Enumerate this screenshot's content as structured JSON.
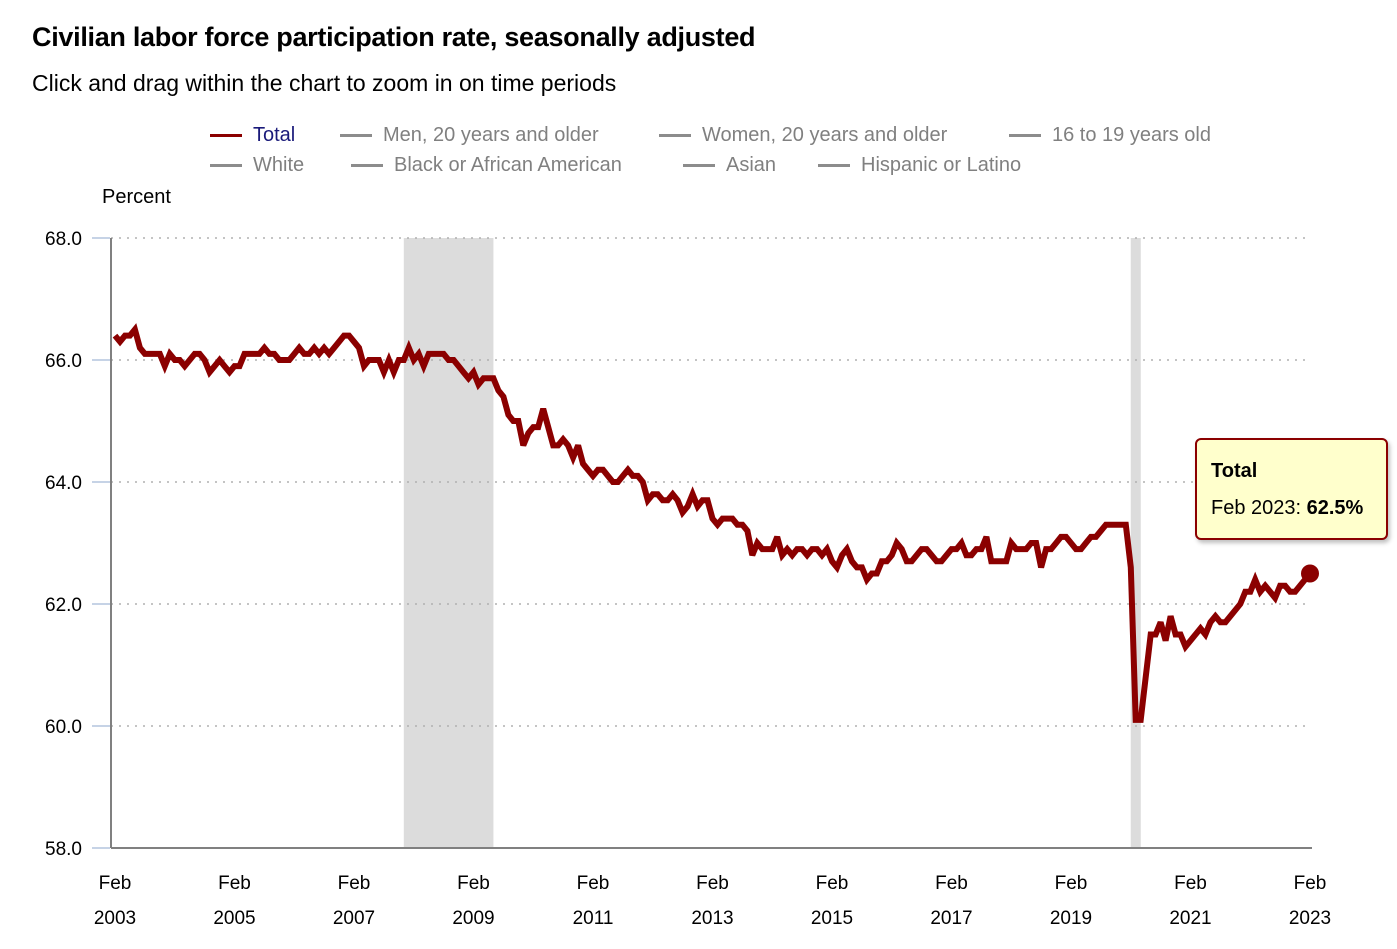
{
  "header": {
    "title": "Civilian labor force participation rate, seasonally adjusted",
    "subtitle": "Click and drag within the chart to zoom in on time periods"
  },
  "legend": {
    "items": [
      {
        "label": "Total",
        "active": true
      },
      {
        "label": "Men, 20 years and older",
        "active": false
      },
      {
        "label": "Women, 20 years and older",
        "active": false
      },
      {
        "label": "16 to 19 years old",
        "active": false
      },
      {
        "label": "White",
        "active": false
      },
      {
        "label": "Black or African American",
        "active": false
      },
      {
        "label": "Asian",
        "active": false
      },
      {
        "label": "Hispanic or Latino",
        "active": false
      }
    ]
  },
  "tooltip": {
    "series": "Total",
    "period": "Feb 2023: ",
    "value": "62.5%"
  },
  "colors": {
    "series": "#8b0000",
    "recession": "#dcdcdc",
    "grid": "#b0b0b0",
    "axis": "#808080",
    "inactive_legend": "#808080",
    "active_legend_text": "#1a1a7a"
  },
  "chart_data": {
    "type": "line",
    "title": "Civilian labor force participation rate, seasonally adjusted",
    "subtitle": "Click and drag within the chart to zoom in on time periods",
    "ylabel": "Percent",
    "xlabel": "",
    "ylim": [
      58.0,
      68.0
    ],
    "yticks": [
      "58.0",
      "60.0",
      "62.0",
      "64.0",
      "66.0",
      "68.0"
    ],
    "ytick_values": [
      58,
      60,
      62,
      64,
      66,
      68
    ],
    "xticks": [
      {
        "month": "Feb",
        "year": "2003",
        "index": 0
      },
      {
        "month": "Feb",
        "year": "2005",
        "index": 24
      },
      {
        "month": "Feb",
        "year": "2007",
        "index": 48
      },
      {
        "month": "Feb",
        "year": "2009",
        "index": 72
      },
      {
        "month": "Feb",
        "year": "2011",
        "index": 96
      },
      {
        "month": "Feb",
        "year": "2013",
        "index": 120
      },
      {
        "month": "Feb",
        "year": "2015",
        "index": 144
      },
      {
        "month": "Feb",
        "year": "2017",
        "index": 168
      },
      {
        "month": "Feb",
        "year": "2019",
        "index": 192
      },
      {
        "month": "Feb",
        "year": "2021",
        "index": 216
      },
      {
        "month": "Feb",
        "year": "2023",
        "index": 240
      }
    ],
    "x_start": "Feb 2003",
    "x_end": "Feb 2023",
    "frequency": "monthly",
    "grid": true,
    "legend_position": "top",
    "recessions": [
      {
        "start_index": 58,
        "end_index": 76,
        "label": "Dec 2007 - Jun 2009"
      },
      {
        "start_index": 204,
        "end_index": 206,
        "label": "Feb 2020 - Apr 2020"
      }
    ],
    "highlight": {
      "index": 240,
      "label": "Feb 2023",
      "value": 62.5
    },
    "series": [
      {
        "name": "Total",
        "values": [
          66.4,
          66.3,
          66.4,
          66.4,
          66.5,
          66.2,
          66.1,
          66.1,
          66.1,
          66.1,
          65.9,
          66.1,
          66.0,
          66.0,
          65.9,
          66.0,
          66.1,
          66.1,
          66.0,
          65.8,
          65.9,
          66.0,
          65.9,
          65.8,
          65.9,
          65.9,
          66.1,
          66.1,
          66.1,
          66.1,
          66.2,
          66.1,
          66.1,
          66.0,
          66.0,
          66.0,
          66.1,
          66.2,
          66.1,
          66.1,
          66.2,
          66.1,
          66.2,
          66.1,
          66.2,
          66.3,
          66.4,
          66.4,
          66.3,
          66.2,
          65.9,
          66.0,
          66.0,
          66.0,
          65.8,
          66.0,
          65.8,
          66.0,
          66.0,
          66.2,
          66.0,
          66.1,
          65.9,
          66.1,
          66.1,
          66.1,
          66.1,
          66.0,
          66.0,
          65.9,
          65.8,
          65.7,
          65.8,
          65.6,
          65.7,
          65.7,
          65.7,
          65.5,
          65.4,
          65.1,
          65.0,
          65.0,
          64.6,
          64.8,
          64.9,
          64.9,
          65.2,
          64.9,
          64.6,
          64.6,
          64.7,
          64.6,
          64.4,
          64.6,
          64.3,
          64.2,
          64.1,
          64.2,
          64.2,
          64.1,
          64.0,
          64.0,
          64.1,
          64.2,
          64.1,
          64.1,
          64.0,
          63.7,
          63.8,
          63.8,
          63.7,
          63.7,
          63.8,
          63.7,
          63.5,
          63.6,
          63.8,
          63.6,
          63.7,
          63.7,
          63.4,
          63.3,
          63.4,
          63.4,
          63.4,
          63.3,
          63.3,
          63.2,
          62.8,
          63.0,
          62.9,
          62.9,
          62.9,
          63.1,
          62.8,
          62.9,
          62.8,
          62.9,
          62.9,
          62.8,
          62.9,
          62.9,
          62.8,
          62.9,
          62.7,
          62.6,
          62.8,
          62.9,
          62.7,
          62.6,
          62.6,
          62.4,
          62.5,
          62.5,
          62.7,
          62.7,
          62.8,
          63.0,
          62.9,
          62.7,
          62.7,
          62.8,
          62.9,
          62.9,
          62.8,
          62.7,
          62.7,
          62.8,
          62.9,
          62.9,
          63.0,
          62.8,
          62.8,
          62.9,
          62.9,
          63.1,
          62.7,
          62.7,
          62.7,
          62.7,
          63.0,
          62.9,
          62.9,
          62.9,
          63.0,
          63.0,
          62.6,
          62.9,
          62.9,
          63.0,
          63.1,
          63.1,
          63.0,
          62.9,
          62.9,
          63.0,
          63.1,
          63.1,
          63.2,
          63.3,
          63.3,
          63.3,
          63.3,
          63.3,
          62.6,
          60.1,
          60.1,
          60.8,
          61.5,
          61.5,
          61.7,
          61.4,
          61.8,
          61.5,
          61.5,
          61.3,
          61.4,
          61.5,
          61.6,
          61.5,
          61.7,
          61.8,
          61.7,
          61.7,
          61.8,
          61.9,
          62.0,
          62.2,
          62.2,
          62.4,
          62.2,
          62.3,
          62.2,
          62.1,
          62.3,
          62.3,
          62.2,
          62.2,
          62.3,
          62.4,
          62.5
        ]
      }
    ]
  }
}
